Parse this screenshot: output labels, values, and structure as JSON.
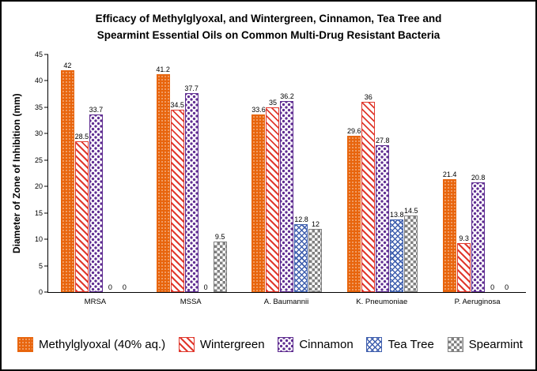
{
  "title": {
    "line1": "Efficacy of Methylglyoxal, and Wintergreen, Cinnamon, Tea Tree and",
    "line2": "Spearmint Essential Oils on Common Multi-Drug Resistant Bacteria"
  },
  "chart_data": {
    "type": "bar",
    "title": "Efficacy of Methylglyoxal, and Wintergreen, Cinnamon, Tea Tree and Spearmint Essential Oils on Common Multi-Drug Resistant Bacteria",
    "xlabel": "",
    "ylabel": "Diameter of Zone of Inhibition (mm)",
    "ylim": [
      0,
      45
    ],
    "yticks": [
      0,
      5,
      10,
      15,
      20,
      25,
      30,
      35,
      40,
      45
    ],
    "grid": false,
    "legend_position": "bottom",
    "data_labels": true,
    "categories": [
      "MRSA",
      "MSSA",
      "A. Baumannii",
      "K. Pneumoniae",
      "P. Aeruginosa"
    ],
    "series": [
      {
        "name": "Methylglyoxal (40% aq.)",
        "color": "#E8650D",
        "pattern": "orange-dotted",
        "values": [
          42,
          41.2,
          33.6,
          29.6,
          21.4
        ]
      },
      {
        "name": "Wintergreen",
        "color": "#E0382D",
        "pattern": "diagonal-stripes",
        "values": [
          28.5,
          34.5,
          35,
          36,
          9.3
        ]
      },
      {
        "name": "Cinnamon",
        "color": "#5F2D91",
        "pattern": "dots",
        "values": [
          33.7,
          37.7,
          36.2,
          27.8,
          20.8
        ]
      },
      {
        "name": "Tea Tree",
        "color": "#3F5FAE",
        "pattern": "crosshatch",
        "values": [
          0,
          0,
          12.8,
          13.8,
          0
        ]
      },
      {
        "name": "Spearmint",
        "color": "#7F7F7F",
        "pattern": "checker",
        "values": [
          0,
          9.5,
          12,
          14.5,
          0
        ]
      }
    ]
  }
}
